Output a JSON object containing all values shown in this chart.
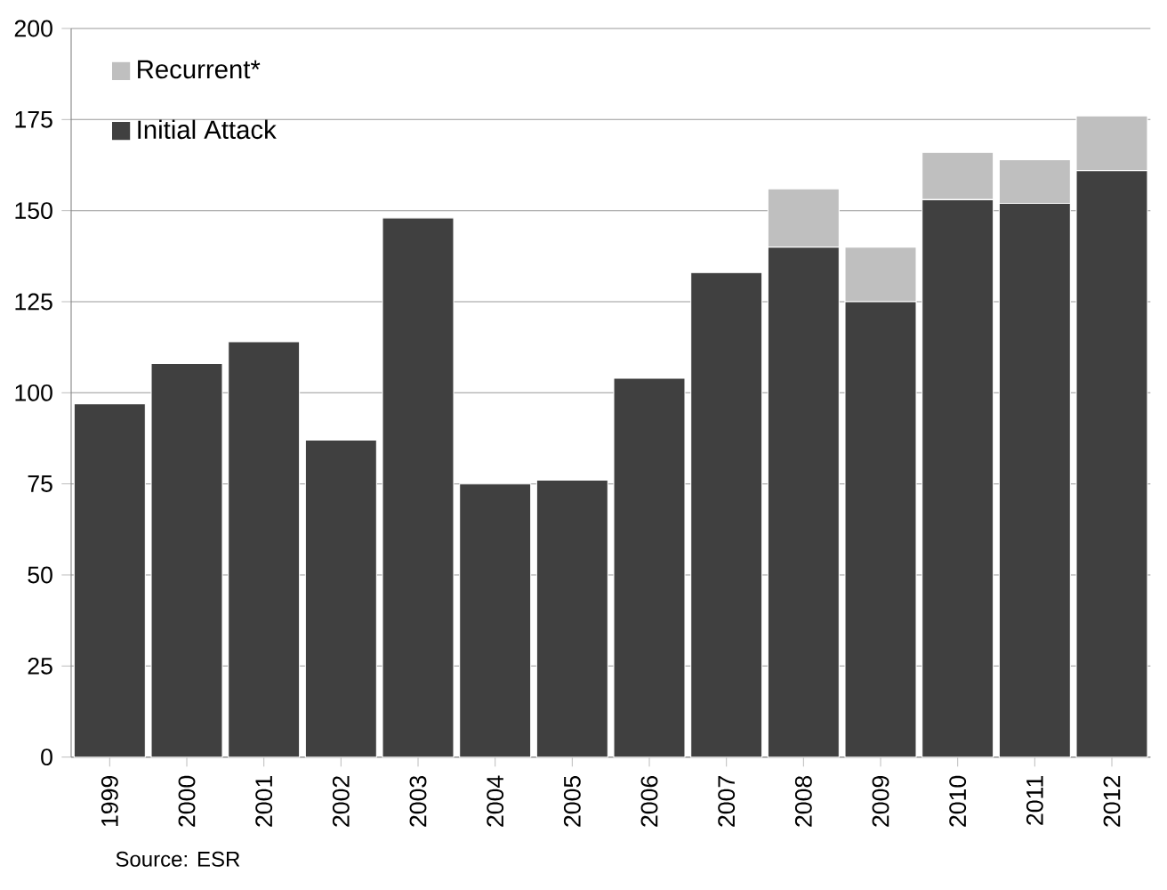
{
  "chart_data": {
    "type": "bar",
    "stacked": true,
    "categories": [
      "1999",
      "2000",
      "2001",
      "2002",
      "2003",
      "2004",
      "2005",
      "2006",
      "2007",
      "2008",
      "2009",
      "2010",
      "2011",
      "2012"
    ],
    "series": [
      {
        "name": "Initial Attack",
        "color": "#404040",
        "values": [
          97,
          108,
          114,
          87,
          148,
          75,
          76,
          104,
          133,
          140,
          125,
          153,
          152,
          161
        ]
      },
      {
        "name": "Recurrent*",
        "color": "#bfbfbf",
        "values": [
          null,
          null,
          null,
          null,
          null,
          null,
          null,
          null,
          null,
          16,
          15,
          13,
          12,
          15
        ]
      }
    ],
    "ylim": [
      0,
      200
    ],
    "yticks": [
      0,
      25,
      50,
      75,
      100,
      125,
      150,
      175,
      200
    ],
    "grid": "y",
    "legend": "top left",
    "annotations": [
      "Source: ESR"
    ]
  }
}
